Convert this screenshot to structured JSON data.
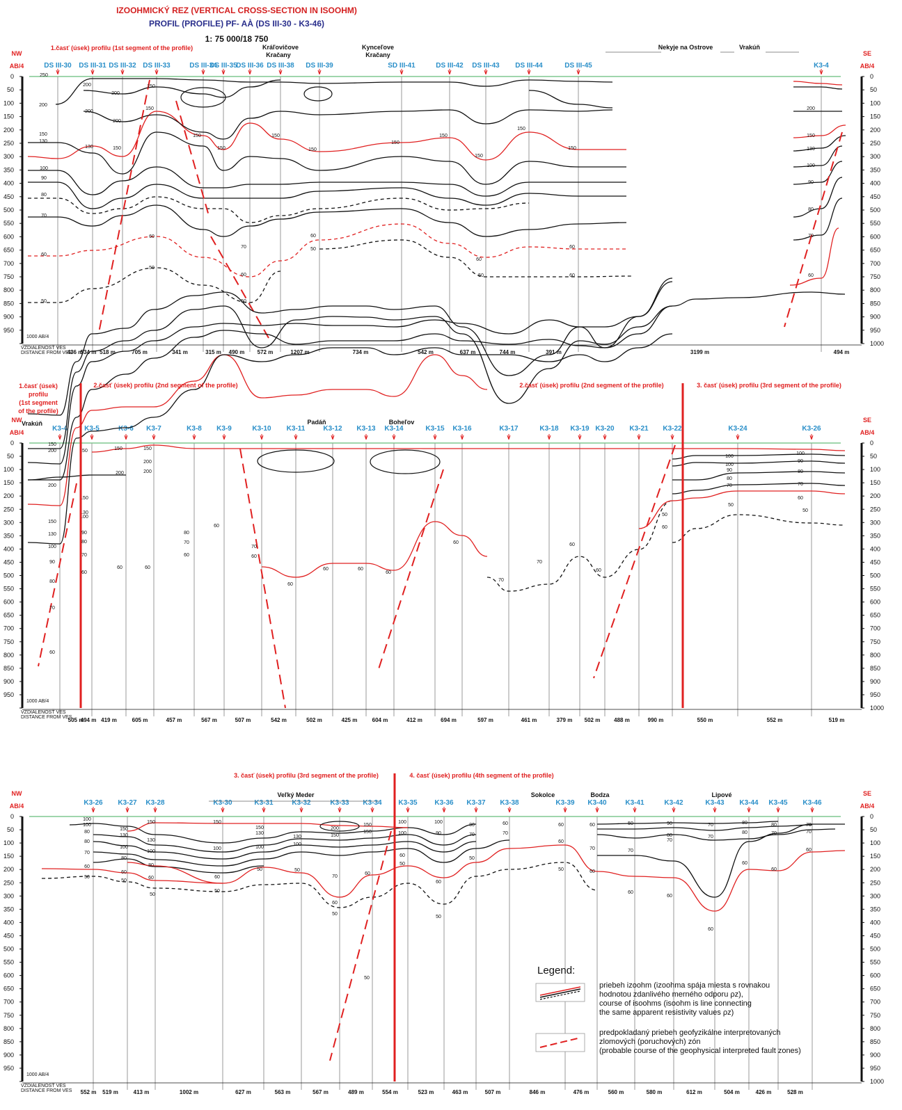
{
  "title": "IZOOHMICKÝ REZ (VERTICAL CROSS-SECTION IN ISOOHM)",
  "profile": "PROFIL (PROFILE) PF- AÀ  (DS III-30  -  K3-46)",
  "scale": "1: 75 000/18 750",
  "direction": {
    "nw": "NW",
    "se": "SE",
    "ab": "AB/4"
  },
  "depth_ticks": [
    "0",
    "50",
    "100",
    "150",
    "200",
    "250",
    "300",
    "350",
    "400",
    "450",
    "500",
    "550",
    "600",
    "650",
    "700",
    "750",
    "800",
    "850",
    "900",
    "950",
    "1000"
  ],
  "footer": {
    "ab_label": "1000 AB/4",
    "dist_1": "VZDIALENOSŤ VES",
    "dist_2": "DISTANCE FROM VES"
  },
  "segments": [
    {
      "labels": [
        "1.časť (úsek) profilu (1st segment of the profile)"
      ],
      "stations": [
        "DS III-30",
        "DS III-31",
        "DS III-32",
        "DS III-33",
        "DS III-34",
        "DS III-35",
        "DS III-36",
        "DS III-38",
        "DS III-39",
        "SD III-41",
        "DS III-42",
        "DS III-43",
        "DS III-44",
        "DS III-45",
        "K3-4"
      ],
      "distances": [
        "534 m",
        "436 m",
        "518 m",
        "705 m",
        "341 m",
        "315 m",
        "490 m",
        "572 m",
        "1207 m",
        "734 m",
        "542 m",
        "637 m",
        "744 m",
        "391 m",
        "3199 m",
        "494 m"
      ],
      "places": [
        "Kráľovičove Kračany",
        "Kynceľove Kračany",
        "Nekyje na Ostrove",
        "Vrakúň"
      ]
    },
    {
      "labels": [
        "1.časť (úsek) profilu (1st segment of the profile)",
        "2.časť (úsek) profilu (2nd segment of the profile)",
        "2.časť (úsek) profilu (2nd segment of the profile)",
        "3. časť (úsek) profilu (3rd segment of the profile)"
      ],
      "stations": [
        "K3-4",
        "K3-5",
        "K3-6",
        "K3-7",
        "K3-8",
        "K3-9",
        "K3-10",
        "K3-11",
        "K3-12",
        "K3-13",
        "K3-14",
        "K3-15",
        "K3-16",
        "K3-17",
        "K3-18",
        "K3-19",
        "K3-20",
        "K3-21",
        "K3-22",
        "K3-24",
        "K3-26"
      ],
      "distances": [
        "494 m",
        "505 m",
        "419 m",
        "605 m",
        "457 m",
        "567 m",
        "507 m",
        "542 m",
        "502 m",
        "425 m",
        "604 m",
        "412 m",
        "694 m",
        "597 m",
        "461 m",
        "379 m",
        "502 m",
        "488 m",
        "990 m",
        "550 m",
        "552 m",
        "519 m"
      ],
      "places": [
        "Vrakúň",
        "Padáň",
        "Boheľov"
      ]
    },
    {
      "labels": [
        "3. časť (úsek) profilu (3rd segment of the profile)",
        "4. časť (úsek) profilu (4th segment of the profile)"
      ],
      "stations": [
        "K3-26",
        "K3-27",
        "K3-28",
        "K3-30",
        "K3-31",
        "K3-32",
        "K3-33",
        "K3-34",
        "K3-35",
        "K3-36",
        "K3-37",
        "K3-38",
        "K3-39",
        "K3-40",
        "K3-41",
        "K3-42",
        "K3-43",
        "K3-44",
        "K3-45",
        "K3-46"
      ],
      "distances": [
        "552 m",
        "519 m",
        "413 m",
        "1002 m",
        "627 m",
        "563 m",
        "567 m",
        "489 m",
        "554 m",
        "523 m",
        "463 m",
        "507 m",
        "846 m",
        "476 m",
        "560 m",
        "580 m",
        "612 m",
        "504 m",
        "426 m",
        "528 m"
      ],
      "places": [
        "Veľký Meder",
        "Sokolce",
        "Bodza",
        "Lipové"
      ]
    }
  ],
  "legend": {
    "title": "Legend:",
    "isoohm_lines": [
      "priebeh izoohm (izoohma spája miesta s rovnakou",
      "hodnotou zdanlivého merného odporu ρz),",
      "course of isoohms (isoohm is line connecting",
      "the same apparent resistivity values ρz)"
    ],
    "fault_lines": [
      "predpokladaný priebeh geofyzikálne interpretovaných",
      "zlomových (poruchových) zón",
      "(probable course of the geophysical interpreted fault zones)"
    ]
  },
  "colors": {
    "red": "#e02020",
    "station": "#2a8fc9",
    "black": "#111111",
    "grey": "#9a9a9a",
    "navy": "#2a2f8c"
  }
}
